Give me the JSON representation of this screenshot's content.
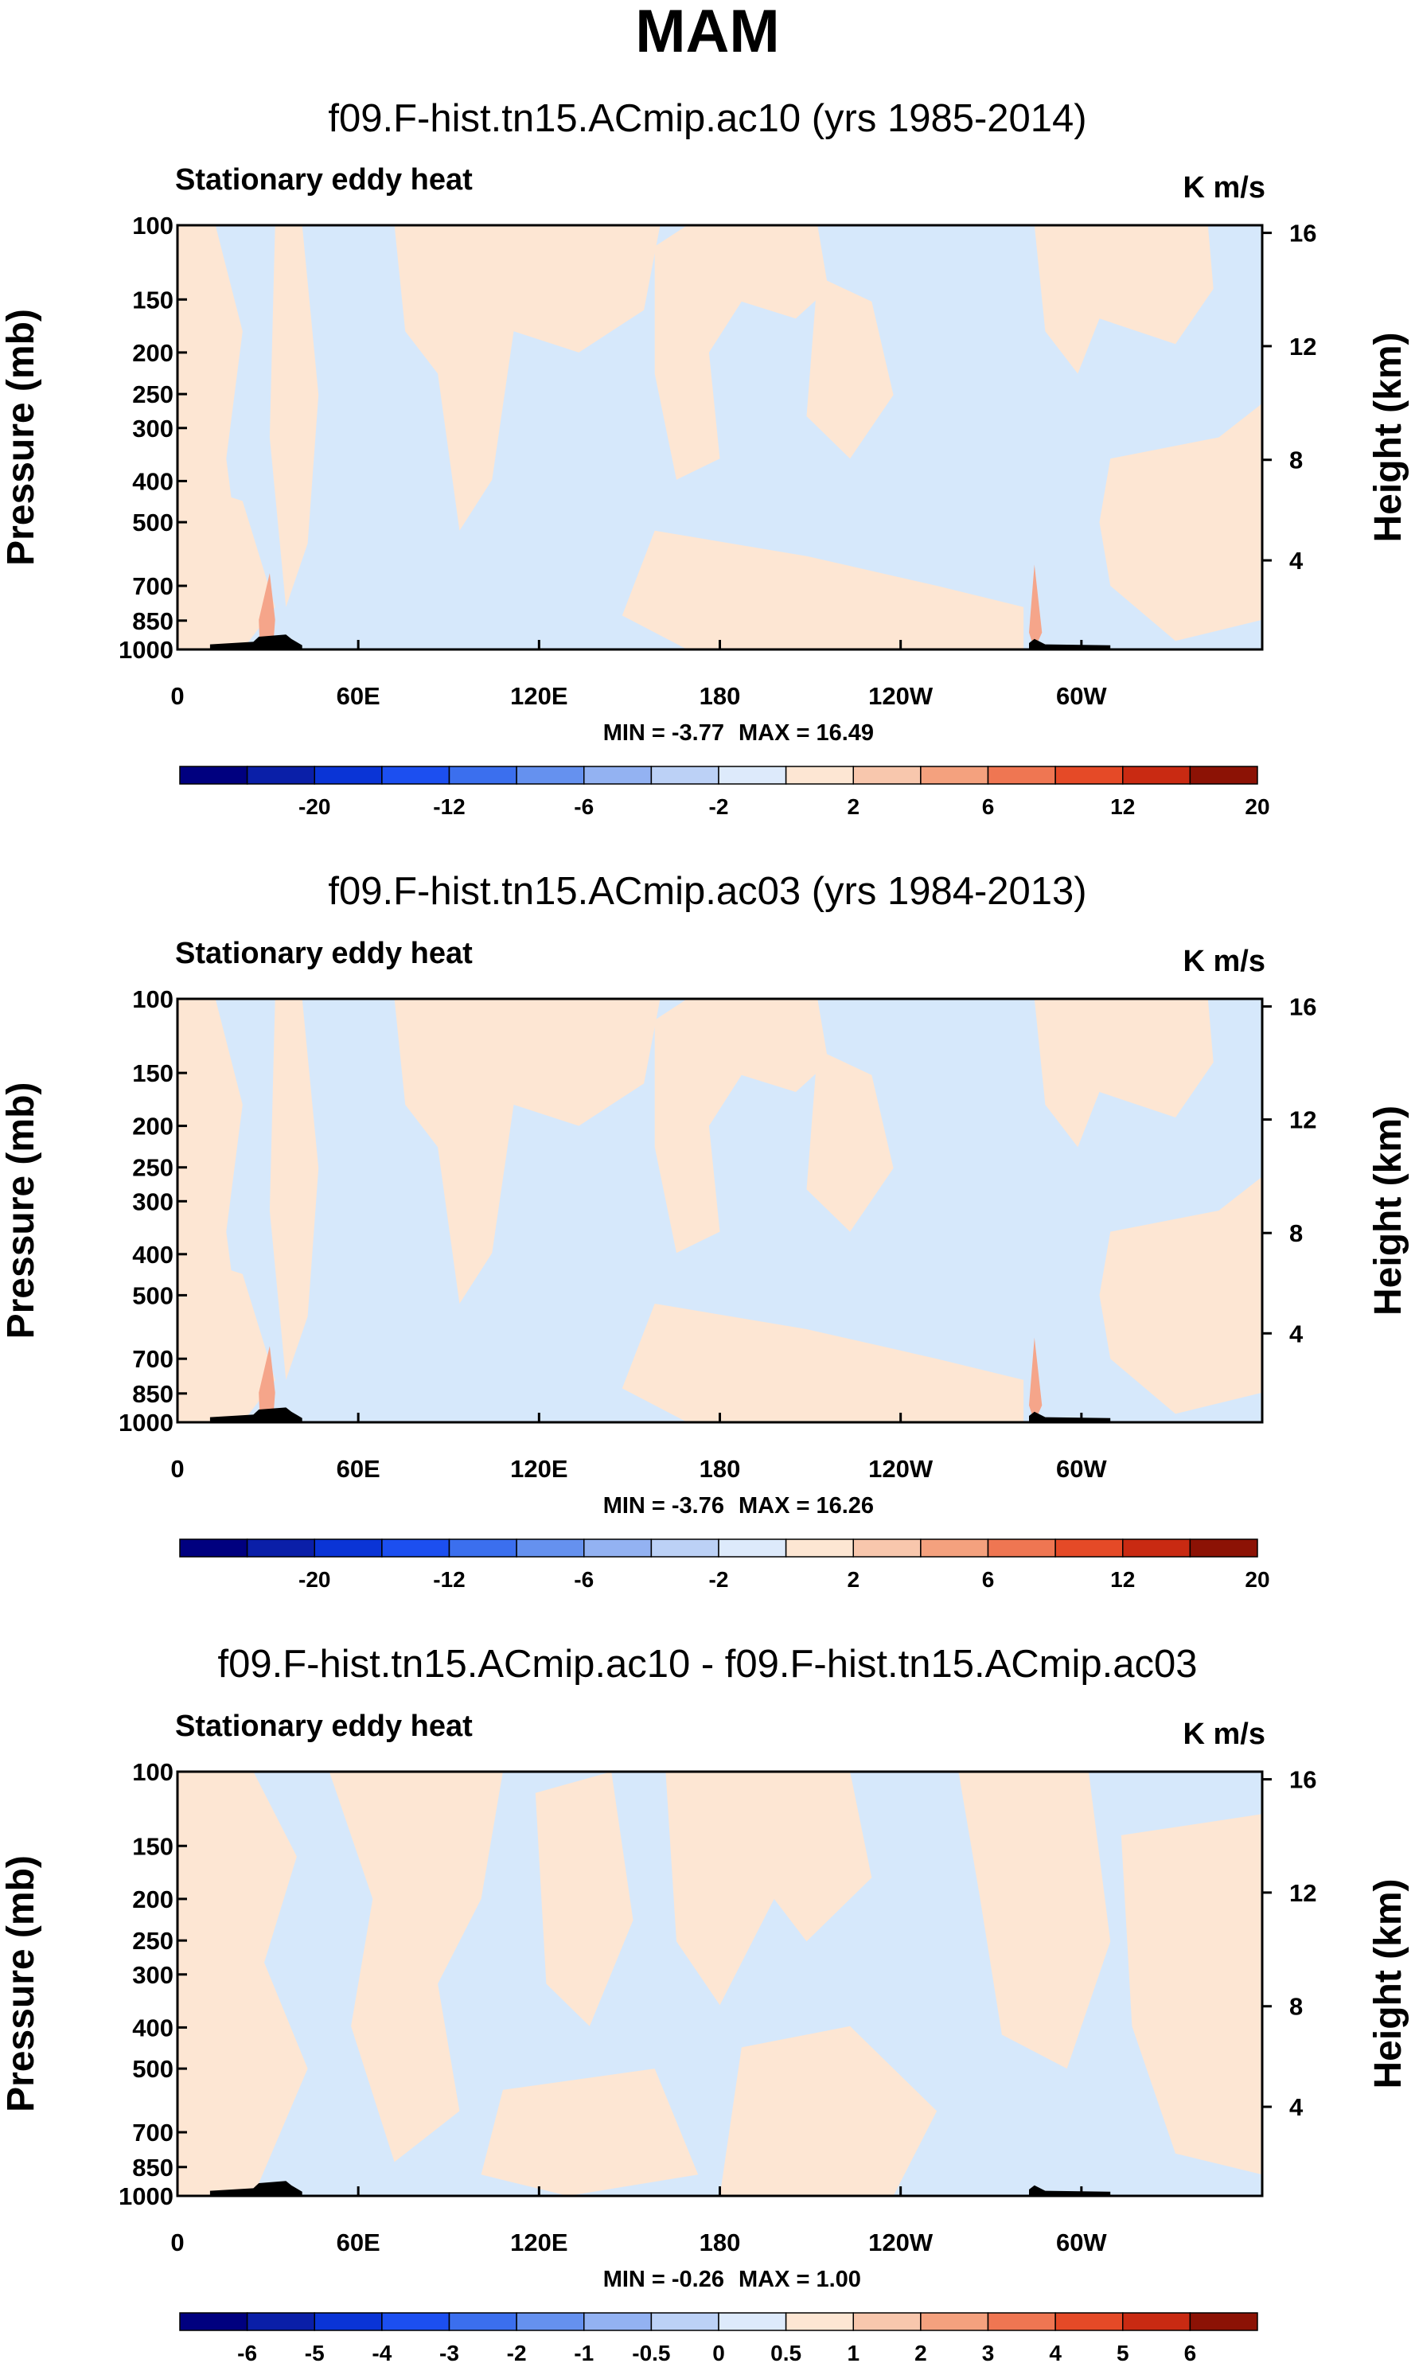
{
  "main_title": "MAM",
  "chart_data": [
    {
      "type": "heatmap",
      "title": "f09.F-hist.tn15.ACmip.ac10 (yrs 1985-2014)",
      "subtitle": "Stationary eddy heat",
      "units": "K m/s",
      "ylabel": "Pressure (mb)",
      "y2label": "Height (km)",
      "pressure_ticks": [
        "100",
        "150",
        "200",
        "250",
        "300",
        "400",
        "500",
        "700",
        "850",
        "1000"
      ],
      "height_ticks": [
        "16",
        "12",
        "8",
        "4"
      ],
      "lon_ticks": [
        "0",
        "60E",
        "120E",
        "180",
        "120W",
        "60W"
      ],
      "min_label": "MIN = -3.77",
      "max_label": "MAX = 16.49",
      "colorbar_labels": [
        "-20",
        "-12",
        "-6",
        "-2",
        "2",
        "6",
        "12",
        "20"
      ]
    },
    {
      "type": "heatmap",
      "title": "f09.F-hist.tn15.ACmip.ac03 (yrs 1984-2013)",
      "subtitle": "Stationary eddy heat",
      "units": "K m/s",
      "ylabel": "Pressure (mb)",
      "y2label": "Height (km)",
      "pressure_ticks": [
        "100",
        "150",
        "200",
        "250",
        "300",
        "400",
        "500",
        "700",
        "850",
        "1000"
      ],
      "height_ticks": [
        "16",
        "12",
        "8",
        "4"
      ],
      "lon_ticks": [
        "0",
        "60E",
        "120E",
        "180",
        "120W",
        "60W"
      ],
      "min_label": "MIN = -3.76",
      "max_label": "MAX = 16.26",
      "colorbar_labels": [
        "-20",
        "-12",
        "-6",
        "-2",
        "2",
        "6",
        "12",
        "20"
      ]
    },
    {
      "type": "heatmap",
      "title": "f09.F-hist.tn15.ACmip.ac10 - f09.F-hist.tn15.ACmip.ac03",
      "subtitle": "Stationary eddy heat",
      "units": "K m/s",
      "ylabel": "Pressure (mb)",
      "y2label": "Height (km)",
      "pressure_ticks": [
        "100",
        "150",
        "200",
        "250",
        "300",
        "400",
        "500",
        "700",
        "850",
        "1000"
      ],
      "height_ticks": [
        "16",
        "12",
        "8",
        "4"
      ],
      "lon_ticks": [
        "0",
        "60E",
        "120E",
        "180",
        "120W",
        "60W"
      ],
      "min_label": "MIN = -0.26",
      "max_label": "MAX = 1.00",
      "colorbar_labels": [
        "-6",
        "-5",
        "-4",
        "-3",
        "-2",
        "-1",
        "-0.5",
        "0",
        "0.5",
        "1",
        "2",
        "3",
        "4",
        "5",
        "6"
      ]
    }
  ],
  "colors": {
    "negative_fill": "#d6e8fb",
    "positive_fill": "#fde6d3",
    "strong_positive": "#f5a58a",
    "terrain": "#000000",
    "colorbar": [
      "#00007f",
      "#0a1fa8",
      "#0a34d6",
      "#1c4ff0",
      "#3b6fee",
      "#6591ef",
      "#93b2f2",
      "#bcd1f6",
      "#ddeafb",
      "#fde6d3",
      "#f8c7ad",
      "#f4a17e",
      "#ef7652",
      "#e54a27",
      "#c92a12",
      "#8c1205"
    ]
  }
}
